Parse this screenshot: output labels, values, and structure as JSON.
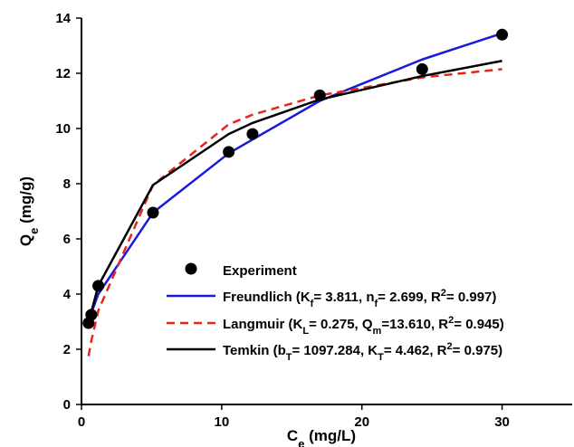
{
  "chart_data": {
    "type": "scatter",
    "xlabel": {
      "main": "C",
      "sub": "e",
      "rest": " (mg/L)"
    },
    "ylabel": {
      "main": "Q",
      "sub": "e",
      "rest": " (mg/g)"
    },
    "xlim": [
      0,
      35
    ],
    "ylim": [
      0,
      14
    ],
    "x_ticks": [
      0,
      10,
      20,
      30
    ],
    "y_ticks": [
      0,
      2,
      4,
      6,
      8,
      10,
      12,
      14
    ],
    "grid": false,
    "legend_position": "bottom-right",
    "series": [
      {
        "name": "Experiment",
        "kind": "marker",
        "color": "#000000",
        "x": [
          0.5,
          0.7,
          1.2,
          5.1,
          10.5,
          12.2,
          17.0,
          24.3,
          30.0
        ],
        "y": [
          2.95,
          3.25,
          4.3,
          6.95,
          9.15,
          9.8,
          11.2,
          12.15,
          13.4
        ]
      },
      {
        "name": "Freundlich",
        "kind": "line",
        "color": "#1a1adb",
        "dash": "solid",
        "x": [
          0.7,
          1.2,
          5.1,
          10.5,
          12.2,
          17.0,
          24.3,
          30.0
        ],
        "y": [
          3.3,
          4.0,
          6.95,
          9.1,
          9.6,
          11.0,
          12.5,
          13.45
        ],
        "legend": [
          {
            "t": "Freundlich (K"
          },
          {
            "t": "f",
            "s": "sub"
          },
          {
            "t": "= 3.811, n"
          },
          {
            "t": "f",
            "s": "sub"
          },
          {
            "t": "= 2.699, R"
          },
          {
            "t": "2",
            "s": "sup"
          },
          {
            "t": "= 0.997)"
          }
        ]
      },
      {
        "name": "Langmuir",
        "kind": "line",
        "color": "#e8241c",
        "dash": "dashed",
        "x": [
          0.5,
          0.7,
          1.2,
          5.1,
          10.5,
          12.2,
          17.0,
          24.3,
          30.0
        ],
        "y": [
          1.75,
          2.3,
          3.4,
          7.95,
          10.15,
          10.5,
          11.2,
          11.85,
          12.15
        ],
        "legend": [
          {
            "t": "Langmuir (K"
          },
          {
            "t": "L",
            "s": "sub"
          },
          {
            "t": "= 0.275, Q"
          },
          {
            "t": "m",
            "s": "sub"
          },
          {
            "t": "=13.610, R"
          },
          {
            "t": "2",
            "s": "sup"
          },
          {
            "t": "= 0.945)"
          }
        ]
      },
      {
        "name": "Temkin",
        "kind": "line",
        "color": "#000000",
        "dash": "solid",
        "x": [
          0.5,
          0.7,
          1.2,
          5.1,
          10.5,
          12.2,
          17.0,
          24.3,
          30.0
        ],
        "y": [
          2.95,
          3.35,
          4.3,
          7.95,
          9.8,
          10.2,
          11.05,
          11.9,
          12.45
        ],
        "legend": [
          {
            "t": "Temkin (b"
          },
          {
            "t": "T",
            "s": "sub"
          },
          {
            "t": "= 1097.284, K"
          },
          {
            "t": "T",
            "s": "sub"
          },
          {
            "t": "= 4.462, R"
          },
          {
            "t": "2",
            "s": "sup"
          },
          {
            "t": "= 0.975)"
          }
        ]
      }
    ]
  }
}
